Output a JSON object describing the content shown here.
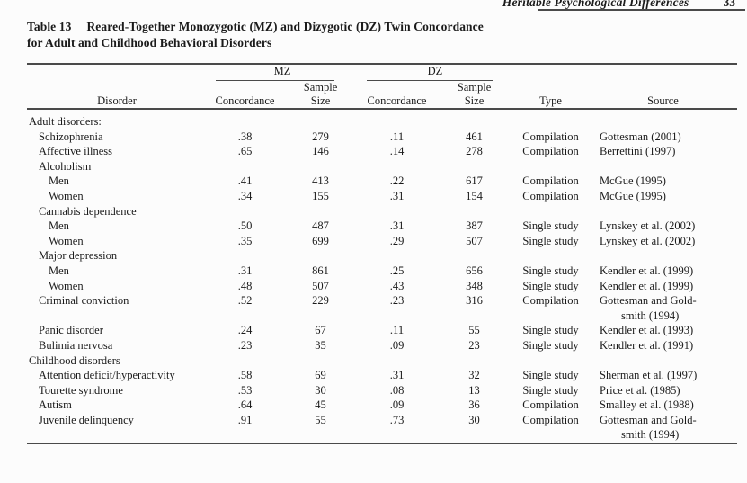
{
  "page": {
    "running_head": "Heritable Psychological Differences",
    "page_number": "33"
  },
  "table": {
    "caption": {
      "label": "Table 13",
      "line1": "Reared-Together Monozygotic (MZ) and Dizygotic (DZ) Twin Concordance",
      "line2": "for Adult and Childhood Behavioral Disorders"
    },
    "column_groups": {
      "mz": "MZ",
      "dz": "DZ"
    },
    "columns": {
      "disorder": "Disorder",
      "concordance": "Concordance",
      "sample_line1": "Sample",
      "sample_line2": "Size",
      "type": "Type",
      "source": "Source"
    },
    "rows": [
      {
        "label": "Adult disorders:",
        "indent": 0
      },
      {
        "label": "Schizophrenia",
        "indent": 1,
        "mz_concordance": ".38",
        "mz_sample": "279",
        "dz_concordance": ".11",
        "dz_sample": "461",
        "type": "Compilation",
        "source": "Gottesman (2001)"
      },
      {
        "label": "Affective illness",
        "indent": 1,
        "mz_concordance": ".65",
        "mz_sample": "146",
        "dz_concordance": ".14",
        "dz_sample": "278",
        "type": "Compilation",
        "source": "Berrettini (1997)"
      },
      {
        "label": "Alcoholism",
        "indent": 1
      },
      {
        "label": "Men",
        "indent": 2,
        "mz_concordance": ".41",
        "mz_sample": "413",
        "dz_concordance": ".22",
        "dz_sample": "617",
        "type": "Compilation",
        "source": "McGue (1995)"
      },
      {
        "label": "Women",
        "indent": 2,
        "mz_concordance": ".34",
        "mz_sample": "155",
        "dz_concordance": ".31",
        "dz_sample": "154",
        "type": "Compilation",
        "source": "McGue (1995)"
      },
      {
        "label": "Cannabis dependence",
        "indent": 1
      },
      {
        "label": "Men",
        "indent": 2,
        "mz_concordance": ".50",
        "mz_sample": "487",
        "dz_concordance": ".31",
        "dz_sample": "387",
        "type": "Single study",
        "source": "Lynskey et al. (2002)"
      },
      {
        "label": "Women",
        "indent": 2,
        "mz_concordance": ".35",
        "mz_sample": "699",
        "dz_concordance": ".29",
        "dz_sample": "507",
        "type": "Single study",
        "source": "Lynskey et al. (2002)"
      },
      {
        "label": "Major depression",
        "indent": 1
      },
      {
        "label": "Men",
        "indent": 2,
        "mz_concordance": ".31",
        "mz_sample": "861",
        "dz_concordance": ".25",
        "dz_sample": "656",
        "type": "Single study",
        "source": "Kendler et al. (1999)"
      },
      {
        "label": "Women",
        "indent": 2,
        "mz_concordance": ".48",
        "mz_sample": "507",
        "dz_concordance": ".43",
        "dz_sample": "348",
        "type": "Single study",
        "source": "Kendler et al. (1999)"
      },
      {
        "label": "Criminal conviction",
        "indent": 1,
        "mz_concordance": ".52",
        "mz_sample": "229",
        "dz_concordance": ".23",
        "dz_sample": "316",
        "type": "Compilation",
        "source": [
          "Gottesman and Gold-",
          "smith (1994)"
        ]
      },
      {
        "label": "Panic disorder",
        "indent": 1,
        "mz_concordance": ".24",
        "mz_sample": "67",
        "dz_concordance": ".11",
        "dz_sample": "55",
        "type": "Single study",
        "source": "Kendler et al. (1993)"
      },
      {
        "label": "Bulimia nervosa",
        "indent": 1,
        "mz_concordance": ".23",
        "mz_sample": "35",
        "dz_concordance": ".09",
        "dz_sample": "23",
        "type": "Single study",
        "source": "Kendler et al. (1991)"
      },
      {
        "label": "Childhood disorders",
        "indent": 0
      },
      {
        "label": "Attention deficit/hyperactivity",
        "indent": 1,
        "mz_concordance": ".58",
        "mz_sample": "69",
        "dz_concordance": ".31",
        "dz_sample": "32",
        "type": "Single study",
        "source": "Sherman et al. (1997)"
      },
      {
        "label": "Tourette syndrome",
        "indent": 1,
        "mz_concordance": ".53",
        "mz_sample": "30",
        "dz_concordance": ".08",
        "dz_sample": "13",
        "type": "Single study",
        "source": "Price et al. (1985)"
      },
      {
        "label": "Autism",
        "indent": 1,
        "mz_concordance": ".64",
        "mz_sample": "45",
        "dz_concordance": ".09",
        "dz_sample": "36",
        "type": "Compilation",
        "source": "Smalley et al. (1988)"
      },
      {
        "label": "Juvenile delinquency",
        "indent": 1,
        "mz_concordance": ".91",
        "mz_sample": "55",
        "dz_concordance": ".73",
        "dz_sample": "30",
        "type": "Compilation",
        "source": [
          "Gottesman and Gold-",
          "smith (1994)"
        ]
      }
    ]
  }
}
